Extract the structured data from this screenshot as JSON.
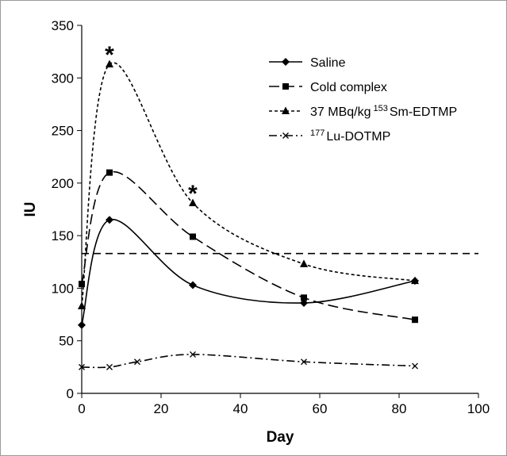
{
  "chart_data": {
    "type": "line",
    "xlabel": "Day",
    "ylabel": "IU",
    "xlim": [
      0,
      100
    ],
    "ylim": [
      0,
      350
    ],
    "xticks": [
      0,
      20,
      40,
      60,
      80,
      100
    ],
    "yticks": [
      0,
      50,
      100,
      150,
      200,
      250,
      300,
      350
    ],
    "grid": false,
    "legend_position": "top-right",
    "series": [
      {
        "name": "Saline",
        "marker": "diamond",
        "line_style": "solid",
        "x": [
          0,
          7,
          28,
          56,
          84
        ],
        "y": [
          65,
          165,
          103,
          86,
          107
        ]
      },
      {
        "name": "Cold complex",
        "marker": "square",
        "line_style": "long-dash",
        "x": [
          0,
          7,
          28,
          56,
          84
        ],
        "y": [
          104,
          210,
          149,
          91,
          70
        ]
      },
      {
        "name": "37 MBq/kg 153 Sm-EDTMP",
        "legend": {
          "prefix": "37 MBq/kg ",
          "sup": "153",
          "suffix": "Sm-EDTMP"
        },
        "marker": "triangle",
        "line_style": "short-dash",
        "x": [
          0,
          7,
          28,
          56,
          84
        ],
        "y": [
          83,
          313,
          181,
          123,
          107
        ]
      },
      {
        "name": "177 Lu-DOTMP",
        "legend": {
          "prefix": "",
          "sup": "177",
          "suffix": "Lu-DOTMP"
        },
        "marker": "x",
        "line_style": "dash-dot",
        "x": [
          0,
          7,
          14,
          28,
          56,
          84
        ],
        "y": [
          25,
          25,
          30,
          37,
          30,
          26
        ]
      }
    ],
    "reference_line": {
      "y": 133,
      "x_from": 0,
      "x_to": 100,
      "style": "dashed"
    },
    "annotations": [
      {
        "text": "*",
        "x": 7,
        "y": 313
      },
      {
        "text": "*",
        "x": 28,
        "y": 181
      }
    ],
    "colors": {
      "lines": "#000000",
      "background": "#ffffff",
      "frame": "#9a9a9a"
    }
  }
}
